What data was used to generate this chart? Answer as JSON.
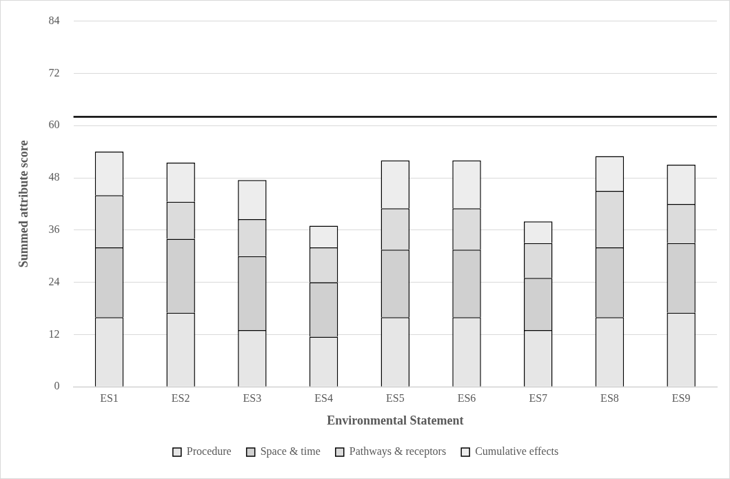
{
  "chart_data": {
    "type": "bar",
    "xlabel": "Environmental Statement",
    "ylabel": "Summed attribute score",
    "categories": [
      "ES1",
      "ES2",
      "ES3",
      "ES4",
      "ES5",
      "ES6",
      "ES7",
      "ES8",
      "ES9"
    ],
    "stacked": true,
    "series": [
      {
        "name": "Procedure",
        "color": "#e6e6e6",
        "values": [
          16,
          17,
          13,
          11.5,
          16,
          16,
          13,
          16,
          17
        ]
      },
      {
        "name": "Space & time",
        "color": "#d0d0d0",
        "values": [
          16,
          17,
          17,
          12.5,
          15.5,
          15.5,
          12,
          16,
          16
        ]
      },
      {
        "name": "Pathways & receptors",
        "color": "#dcdcdc",
        "values": [
          12,
          8.5,
          8.5,
          8,
          9.5,
          9.5,
          8,
          13,
          9
        ]
      },
      {
        "name": "Cumulative effects",
        "color": "#ededed",
        "values": [
          10,
          9,
          9,
          5,
          11,
          11,
          5,
          8,
          9
        ]
      }
    ],
    "ylim": [
      0,
      84
    ],
    "yticks": [
      0,
      12,
      24,
      36,
      48,
      60,
      72,
      84
    ],
    "grid": "y",
    "legend": "bottom",
    "ref_lines": [
      {
        "axis": "y",
        "value": 62,
        "color": "#000000"
      }
    ]
  }
}
